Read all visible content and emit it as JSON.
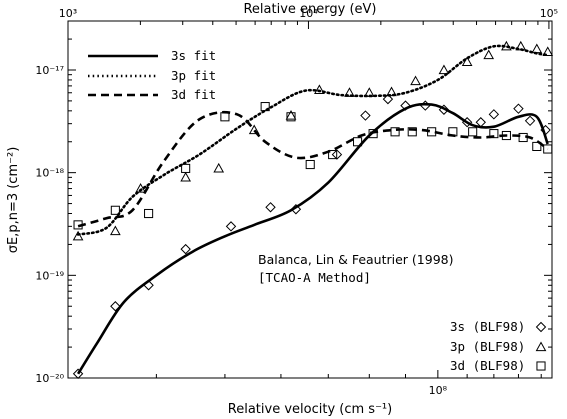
{
  "chart_data": {
    "type": "line",
    "xlabel": "Relative velocity (cm s⁻¹)",
    "x2label": "Relative energy (eV)",
    "ylabel": "σE,p,n=3 (cm⁻²)",
    "x_scale": "log",
    "y_scale": "log",
    "xlim": [
      30000000.0,
      145000000.0
    ],
    "ylim": [
      1e-20,
      3e-17
    ],
    "x2_ticks": [
      {
        "value": 1000,
        "label": "10³"
      },
      {
        "value": 10000,
        "label": "10⁴"
      },
      {
        "value": 100000,
        "label": "10⁵"
      }
    ],
    "x_ticks": [
      {
        "value": 100000000.0,
        "label": "10⁸"
      }
    ],
    "y_ticks": [
      {
        "value": 1e-20,
        "label": "10⁻²⁰"
      },
      {
        "value": 1e-19,
        "label": "10⁻¹⁹"
      },
      {
        "value": 1e-18,
        "label": "10⁻¹⁸"
      },
      {
        "value": 1e-17,
        "label": "10⁻¹⁷"
      }
    ],
    "annotation": [
      "Balanca, Lin & Feautrier (1998)",
      "[TCAO-A Method]"
    ],
    "legend_placement": "top-left",
    "series": [
      {
        "name": "3s fit",
        "kind": "fit",
        "line": "solid",
        "x": [
          31000000.0,
          33000000.0,
          36000000.0,
          40000000.0,
          45000000.0,
          50000000.0,
          55000000.0,
          62000000.0,
          70000000.0,
          80000000.0,
          90000000.0,
          98000000.0,
          105000000.0,
          112000000.0,
          120000000.0,
          130000000.0,
          138000000.0,
          143000000.0
        ],
        "y": [
          1.1e-20,
          2.2e-20,
          5.5e-20,
          1e-19,
          1.7e-19,
          2.4e-19,
          3.1e-19,
          4.3e-19,
          8e-19,
          2.3e-18,
          4.2e-18,
          4.6e-18,
          3.8e-18,
          2.9e-18,
          2.8e-18,
          3.5e-18,
          3.5e-18,
          1.9e-18
        ]
      },
      {
        "name": "3p fit",
        "kind": "fit",
        "line": "dotted",
        "x": [
          31000000.0,
          34000000.0,
          37000000.0,
          41000000.0,
          46000000.0,
          52000000.0,
          58000000.0,
          65000000.0,
          73000000.0,
          82000000.0,
          90000000.0,
          100000000.0,
          110000000.0,
          120000000.0,
          130000000.0,
          138000000.0,
          143000000.0
        ],
        "y": [
          2.5e-19,
          2.9e-19,
          5.8e-19,
          9.5e-19,
          1.5e-18,
          2.7e-18,
          4.3e-18,
          6.3e-18,
          5.7e-18,
          5.6e-18,
          6e-18,
          8e-18,
          1.3e-17,
          1.7e-17,
          1.6e-17,
          1.45e-17,
          1.4e-17
        ]
      },
      {
        "name": "3d fit",
        "kind": "fit",
        "line": "dashed",
        "x": [
          31000000.0,
          34000000.0,
          37000000.0,
          41000000.0,
          46000000.0,
          52000000.0,
          57000000.0,
          63000000.0,
          70000000.0,
          78000000.0,
          86000000.0,
          95000000.0,
          105000000.0,
          115000000.0,
          125000000.0,
          135000000.0,
          143000000.0
        ],
        "y": [
          3e-19,
          3.6e-19,
          4.3e-19,
          1.3e-18,
          3.3e-18,
          3.7e-18,
          2e-18,
          1.4e-18,
          1.6e-18,
          2.3e-18,
          2.6e-18,
          2.6e-18,
          2.3e-18,
          2.2e-18,
          2.3e-18,
          2.2e-18,
          1.7e-18
        ]
      },
      {
        "name": "3s (BLF98)",
        "kind": "points",
        "marker": "diamond",
        "x": [
          31000000.0,
          35000000.0,
          39000000.0,
          44000000.0,
          51000000.0,
          58000000.0,
          63000000.0,
          72000000.0,
          79000000.0,
          85000000.0,
          90000000.0,
          96000000.0,
          102000000.0,
          110000000.0,
          115000000.0,
          120000000.0,
          130000000.0,
          135000000.0,
          142000000.0
        ],
        "y": [
          1.1e-20,
          5e-20,
          8e-20,
          1.8e-19,
          3e-19,
          4.6e-19,
          4.4e-19,
          1.5e-18,
          3.6e-18,
          5.2e-18,
          4.5e-18,
          4.5e-18,
          4.1e-18,
          3.1e-18,
          3.1e-18,
          3.7e-18,
          4.2e-18,
          3.2e-18,
          2.6e-18
        ]
      },
      {
        "name": "3p (BLF98)",
        "kind": "points",
        "marker": "triangle",
        "x": [
          31000000.0,
          35000000.0,
          38000000.0,
          44000000.0,
          49000000.0,
          55000000.0,
          62000000.0,
          68000000.0,
          75000000.0,
          80000000.0,
          86000000.0,
          93000000.0,
          102000000.0,
          110000000.0,
          118000000.0,
          125000000.0,
          131000000.0,
          138000000.0,
          143000000.0
        ],
        "y": [
          2.4e-19,
          2.7e-19,
          7e-19,
          9e-19,
          1.1e-18,
          2.6e-18,
          3.6e-18,
          6.4e-18,
          6e-18,
          6e-18,
          6.1e-18,
          7.8e-18,
          1e-17,
          1.2e-17,
          1.4e-17,
          1.7e-17,
          1.7e-17,
          1.6e-17,
          1.5e-17
        ]
      },
      {
        "name": "3d (BLF98)",
        "kind": "points",
        "marker": "square",
        "x": [
          31000000.0,
          35000000.0,
          39000000.0,
          44000000.0,
          50000000.0,
          57000000.0,
          62000000.0,
          66000000.0,
          71000000.0,
          77000000.0,
          81000000.0,
          87000000.0,
          92000000.0,
          98000000.0,
          105000000.0,
          112000000.0,
          120000000.0,
          125000000.0,
          132000000.0,
          138000000.0,
          143000000.0
        ],
        "y": [
          3.1e-19,
          4.3e-19,
          4e-19,
          1.1e-18,
          3.5e-18,
          4.4e-18,
          3.5e-18,
          1.2e-18,
          1.5e-18,
          2e-18,
          2.4e-18,
          2.5e-18,
          2.5e-18,
          2.5e-18,
          2.5e-18,
          2.5e-18,
          2.4e-18,
          2.3e-18,
          2.2e-18,
          1.8e-18,
          1.7e-18
        ]
      }
    ]
  }
}
